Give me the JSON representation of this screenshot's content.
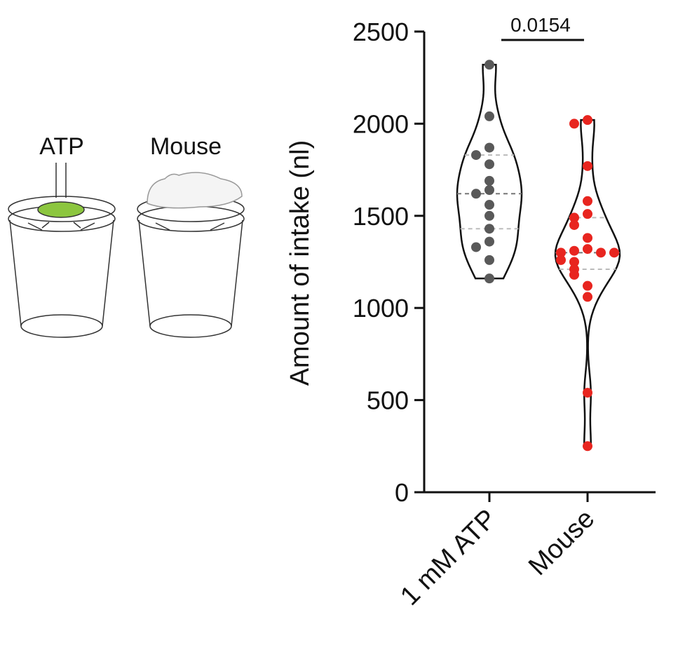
{
  "chart_data": {
    "type": "violin",
    "panel_labels": [
      "ATP",
      "Mouse"
    ],
    "y_label": "Amount of intake (nl)",
    "annotation": "0.0154",
    "categories": [
      "1 mM ATP",
      "Mouse"
    ],
    "series": [
      {
        "name": "1 mM ATP",
        "color": "#595959",
        "values": [
          2320,
          2040,
          1870,
          1830,
          1780,
          1690,
          1640,
          1620,
          1560,
          1500,
          1430,
          1360,
          1330,
          1260,
          1160
        ]
      },
      {
        "name": "Mouse",
        "color": "#e8251f",
        "values": [
          2020,
          2000,
          1770,
          1580,
          1510,
          1490,
          1450,
          1380,
          1320,
          1310,
          1300,
          1300,
          1300,
          1260,
          1250,
          1210,
          1180,
          1120,
          1060,
          540,
          250
        ]
      }
    ],
    "ylim": [
      0,
      2500
    ],
    "yticks": [
      0,
      500,
      1000,
      1500,
      2000,
      2500
    ]
  }
}
